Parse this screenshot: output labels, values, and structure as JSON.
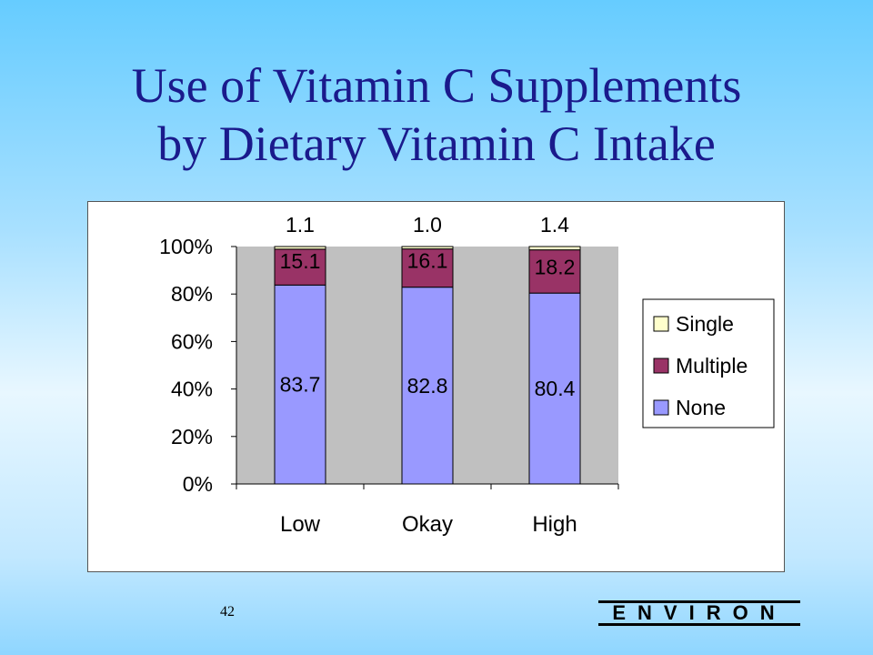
{
  "slide": {
    "title_line1": "Use of Vitamin C Supplements",
    "title_line2": "by Dietary Vitamin C Intake",
    "page_number": "42",
    "logo_text": "ENVIRON"
  },
  "chart_data": {
    "type": "bar",
    "stacked": true,
    "percent_stacked": true,
    "categories": [
      "Low",
      "Okay",
      "High"
    ],
    "series": [
      {
        "name": "None",
        "values": [
          83.7,
          82.8,
          80.4
        ],
        "color": "#9999ff"
      },
      {
        "name": "Multiple",
        "values": [
          15.1,
          16.1,
          18.2
        ],
        "color": "#993366"
      },
      {
        "name": "Single",
        "values": [
          1.1,
          1.0,
          1.4
        ],
        "color": "#ffffcc"
      }
    ],
    "data_labels": {
      "None": [
        "83.7",
        "82.8",
        "80.4"
      ],
      "Multiple": [
        "15.1",
        "16.1",
        "18.2"
      ],
      "Single": [
        "1.1",
        "1.0",
        "1.4"
      ]
    },
    "y_ticks": [
      "0%",
      "20%",
      "40%",
      "60%",
      "80%",
      "100%"
    ],
    "ylim": [
      0,
      100
    ],
    "legend": {
      "placement": "right",
      "order": [
        "Single",
        "Multiple",
        "None"
      ]
    },
    "plot_background": "#c0c0c0",
    "grid": false
  }
}
